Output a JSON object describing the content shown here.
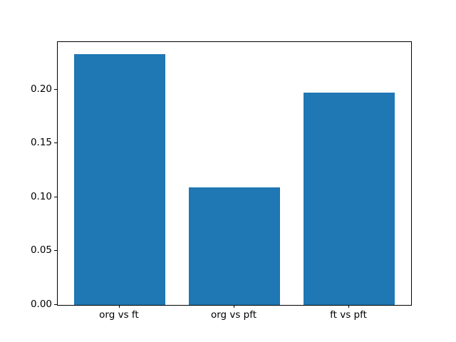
{
  "chart_data": {
    "type": "bar",
    "title": "",
    "xlabel": "",
    "ylabel": "",
    "categories": [
      "org vs ft",
      "org vs pft",
      "ft vs pft"
    ],
    "values": [
      0.233,
      0.109,
      0.197
    ],
    "bar_color": "#1f77b4",
    "background_color": "#ffffff",
    "spine_color": "#000000",
    "ylim": [
      0,
      0.2443
    ],
    "xlim": [
      -0.54,
      2.54
    ],
    "bar_width": 0.8,
    "yticks": [
      0.0,
      0.05,
      0.1,
      0.15,
      0.2
    ],
    "ytick_labels": [
      "0.00",
      "0.05",
      "0.10",
      "0.15",
      "0.20"
    ],
    "grid": false,
    "legend": null
  }
}
